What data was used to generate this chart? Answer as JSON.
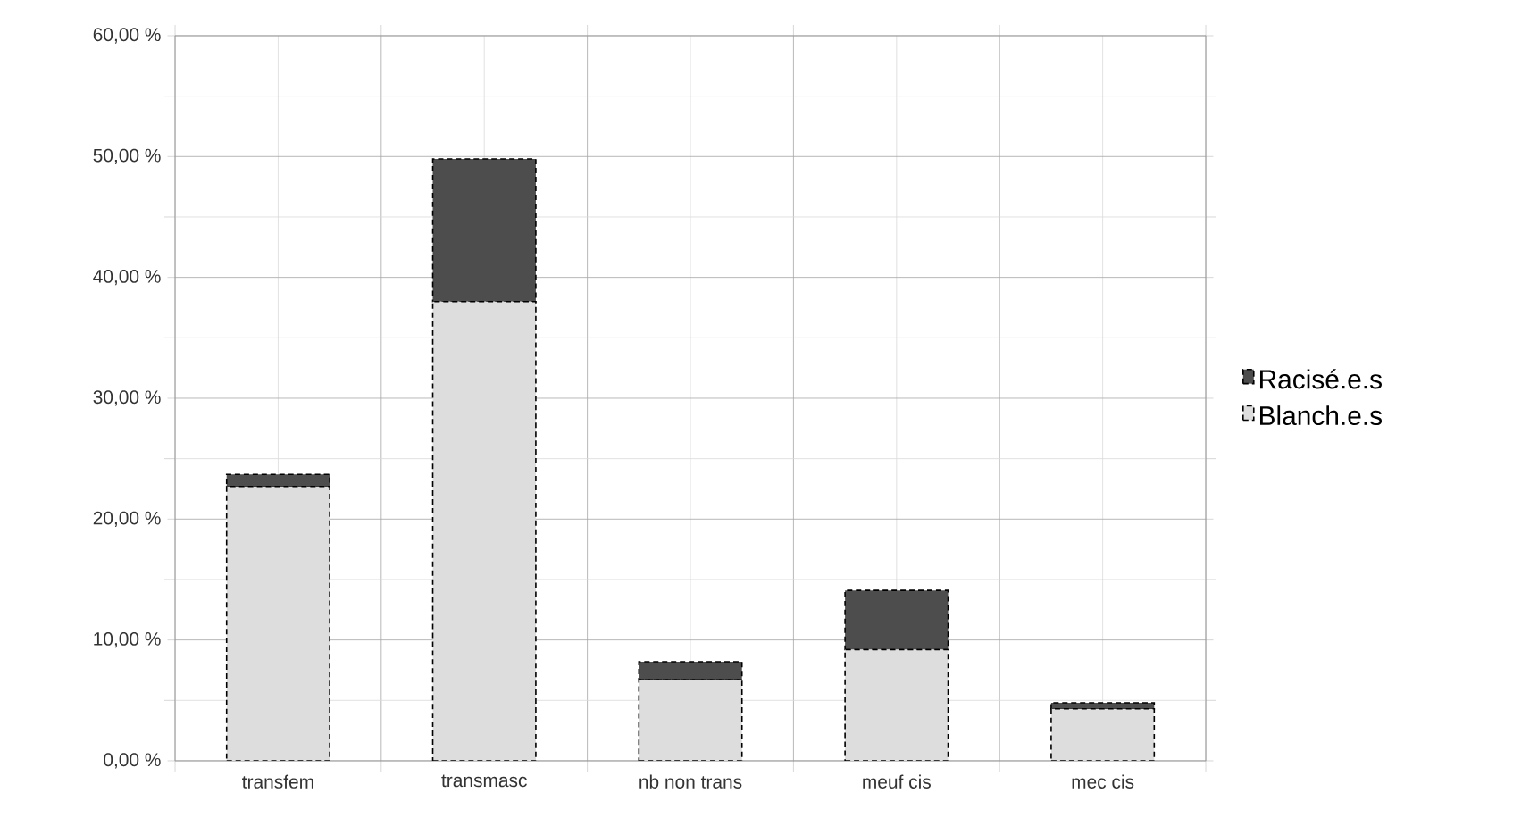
{
  "chart_data": {
    "type": "bar",
    "stacked": true,
    "categories": [
      "transfem",
      "transmasc",
      "nb non trans",
      "meuf cis",
      "mec cis"
    ],
    "series": [
      {
        "name": "Blanch.e.s",
        "color": "#dddddd",
        "values": [
          22.7,
          38.0,
          6.7,
          9.2,
          4.3
        ]
      },
      {
        "name": "Racisé.e.s",
        "color": "#4d4d4d",
        "values": [
          1.0,
          11.8,
          1.5,
          4.9,
          0.5
        ]
      }
    ],
    "ylim": [
      0,
      60
    ],
    "yticks": [
      {
        "value": 0,
        "label": "0,00 %"
      },
      {
        "value": 10,
        "label": "10,00 %"
      },
      {
        "value": 20,
        "label": "20,00 %"
      },
      {
        "value": 30,
        "label": "30,00 %"
      },
      {
        "value": 40,
        "label": "40,00 %"
      },
      {
        "value": 50,
        "label": "50,00 %"
      },
      {
        "value": 60,
        "label": "60,00 %"
      }
    ],
    "grid": true,
    "legend": "right"
  }
}
